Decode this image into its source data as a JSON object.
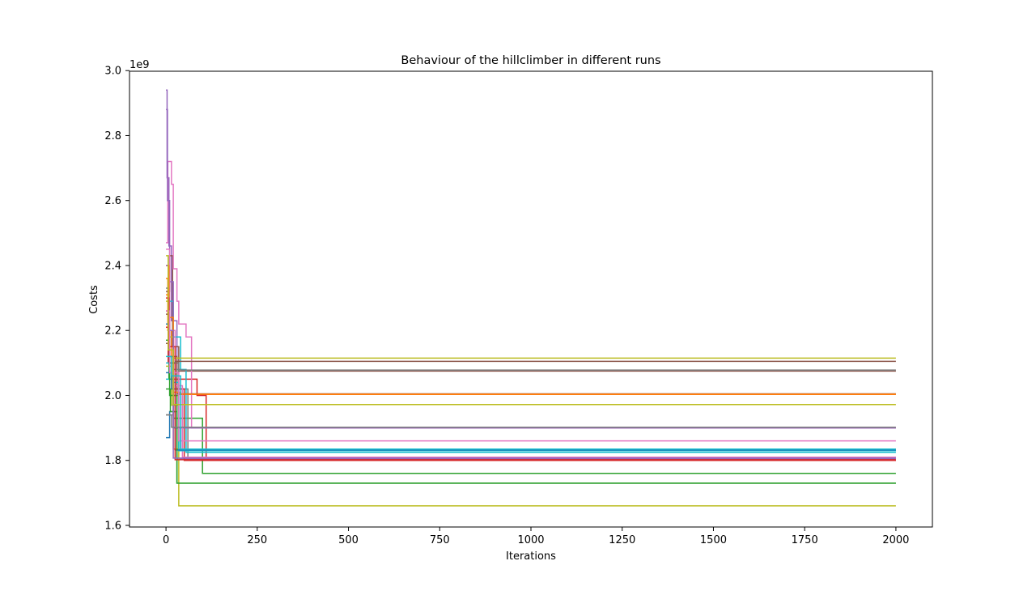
{
  "chart_data": {
    "type": "line",
    "title": "Behaviour of the hillclimber in different runs",
    "xlabel": "Iterations",
    "ylabel": "Costs",
    "y_offset_label": "1e9",
    "y_scale_factor": 1000000000,
    "xlim": [
      -100,
      2100
    ],
    "ylim": [
      1.595,
      2.998
    ],
    "xticks": [
      0,
      250,
      500,
      750,
      1000,
      1250,
      1500,
      1750,
      2000
    ],
    "xtick_labels": [
      "0",
      "250",
      "500",
      "750",
      "1000",
      "1250",
      "1500",
      "1750",
      "2000"
    ],
    "yticks": [
      1.6,
      1.8,
      2.0,
      2.2,
      2.4,
      2.6,
      2.8,
      3.0
    ],
    "ytick_labels": [
      "1.6",
      "1.8",
      "2.0",
      "2.2",
      "2.4",
      "2.6",
      "2.8",
      "3.0"
    ],
    "grid": false,
    "legend": "none",
    "series": [
      {
        "color": "#1f77b4",
        "points": [
          [
            0,
            1.87
          ],
          [
            10,
            1.87
          ],
          [
            10,
            1.95
          ],
          [
            25,
            1.95
          ],
          [
            25,
            1.9
          ],
          [
            40,
            1.9
          ],
          [
            40,
            1.83
          ],
          [
            2000,
            1.83
          ]
        ]
      },
      {
        "color": "#ff7f0e",
        "points": [
          [
            0,
            2.36
          ],
          [
            5,
            2.36
          ],
          [
            5,
            2.2
          ],
          [
            15,
            2.2
          ],
          [
            15,
            2.0
          ],
          [
            35,
            2.0
          ],
          [
            35,
            2.003
          ],
          [
            2000,
            2.003
          ]
        ]
      },
      {
        "color": "#2ca02c",
        "points": [
          [
            0,
            2.16
          ],
          [
            8,
            2.16
          ],
          [
            8,
            2.05
          ],
          [
            20,
            2.05
          ],
          [
            20,
            1.93
          ],
          [
            100,
            1.93
          ],
          [
            100,
            1.76
          ],
          [
            2000,
            1.76
          ]
        ]
      },
      {
        "color": "#d62728",
        "points": [
          [
            0,
            2.26
          ],
          [
            6,
            2.26
          ],
          [
            6,
            2.12
          ],
          [
            20,
            2.12
          ],
          [
            20,
            2.05
          ],
          [
            50,
            2.05
          ],
          [
            50,
            2.05
          ],
          [
            85,
            2.05
          ],
          [
            85,
            2.0
          ],
          [
            110,
            2.0
          ],
          [
            110,
            1.8
          ],
          [
            2000,
            1.8
          ]
        ]
      },
      {
        "color": "#9467bd",
        "points": [
          [
            0,
            2.94
          ],
          [
            3,
            2.94
          ],
          [
            3,
            2.67
          ],
          [
            8,
            2.67
          ],
          [
            8,
            2.46
          ],
          [
            15,
            2.46
          ],
          [
            15,
            2.23
          ],
          [
            30,
            2.23
          ],
          [
            30,
            1.805
          ],
          [
            2000,
            1.805
          ]
        ]
      },
      {
        "color": "#8c564b",
        "points": [
          [
            0,
            2.32
          ],
          [
            10,
            2.32
          ],
          [
            10,
            2.43
          ],
          [
            18,
            2.43
          ],
          [
            18,
            2.15
          ],
          [
            35,
            2.15
          ],
          [
            35,
            2.075
          ],
          [
            2000,
            2.075
          ]
        ]
      },
      {
        "color": "#e377c2",
        "points": [
          [
            0,
            2.47
          ],
          [
            5,
            2.47
          ],
          [
            5,
            2.72
          ],
          [
            15,
            2.72
          ],
          [
            15,
            2.65
          ],
          [
            20,
            2.65
          ],
          [
            20,
            2.39
          ],
          [
            30,
            2.39
          ],
          [
            30,
            2.29
          ],
          [
            35,
            2.29
          ],
          [
            35,
            2.22
          ],
          [
            55,
            2.22
          ],
          [
            55,
            2.18
          ],
          [
            70,
            2.18
          ],
          [
            70,
            1.9
          ],
          [
            2000,
            1.9
          ]
        ]
      },
      {
        "color": "#7f7f7f",
        "points": [
          [
            0,
            1.94
          ],
          [
            20,
            1.94
          ],
          [
            20,
            2.1
          ],
          [
            35,
            2.1
          ],
          [
            35,
            2.02
          ],
          [
            60,
            2.02
          ],
          [
            60,
            1.81
          ],
          [
            2000,
            1.81
          ]
        ]
      },
      {
        "color": "#bcbd22",
        "points": [
          [
            0,
            2.09
          ],
          [
            15,
            2.09
          ],
          [
            15,
            1.97
          ],
          [
            35,
            1.97
          ],
          [
            35,
            1.66
          ],
          [
            2000,
            1.66
          ]
        ]
      },
      {
        "color": "#17becf",
        "points": [
          [
            0,
            2.05
          ],
          [
            10,
            2.05
          ],
          [
            10,
            2.29
          ],
          [
            20,
            2.29
          ],
          [
            20,
            2.18
          ],
          [
            40,
            2.18
          ],
          [
            40,
            2.08
          ],
          [
            55,
            2.08
          ],
          [
            55,
            1.825
          ],
          [
            2000,
            1.825
          ]
        ]
      },
      {
        "color": "#1f77b4",
        "points": [
          [
            0,
            2.07
          ],
          [
            15,
            2.07
          ],
          [
            15,
            2.02
          ],
          [
            45,
            2.02
          ],
          [
            45,
            1.835
          ],
          [
            2000,
            1.835
          ]
        ]
      },
      {
        "color": "#ff7f0e",
        "points": [
          [
            0,
            2.31
          ],
          [
            8,
            2.31
          ],
          [
            8,
            2.18
          ],
          [
            20,
            2.18
          ],
          [
            20,
            1.835
          ],
          [
            2000,
            1.835
          ]
        ]
      },
      {
        "color": "#2ca02c",
        "points": [
          [
            0,
            2.02
          ],
          [
            12,
            2.02
          ],
          [
            12,
            1.95
          ],
          [
            30,
            1.95
          ],
          [
            30,
            1.73
          ],
          [
            2000,
            1.73
          ]
        ]
      },
      {
        "color": "#d62728",
        "points": [
          [
            0,
            2.21
          ],
          [
            6,
            2.21
          ],
          [
            6,
            2.1
          ],
          [
            25,
            2.1
          ],
          [
            25,
            2.02
          ],
          [
            50,
            2.02
          ],
          [
            50,
            1.8
          ],
          [
            2000,
            1.8
          ]
        ]
      },
      {
        "color": "#9467bd",
        "points": [
          [
            0,
            2.88
          ],
          [
            4,
            2.88
          ],
          [
            4,
            2.6
          ],
          [
            10,
            2.6
          ],
          [
            10,
            2.35
          ],
          [
            20,
            2.35
          ],
          [
            20,
            1.9
          ],
          [
            2000,
            1.9
          ]
        ]
      },
      {
        "color": "#8c564b",
        "points": [
          [
            0,
            2.25
          ],
          [
            10,
            2.25
          ],
          [
            10,
            2.12
          ],
          [
            30,
            2.12
          ],
          [
            30,
            2.005
          ],
          [
            2000,
            2.005
          ]
        ]
      },
      {
        "color": "#e377c2",
        "points": [
          [
            0,
            2.45
          ],
          [
            10,
            2.45
          ],
          [
            10,
            2.2
          ],
          [
            25,
            2.2
          ],
          [
            25,
            2.03
          ],
          [
            45,
            2.03
          ],
          [
            45,
            1.81
          ],
          [
            2000,
            1.81
          ]
        ]
      },
      {
        "color": "#7f7f7f",
        "points": [
          [
            0,
            2.33
          ],
          [
            8,
            2.33
          ],
          [
            8,
            2.2
          ],
          [
            20,
            2.2
          ],
          [
            20,
            2.08
          ],
          [
            40,
            2.08
          ],
          [
            40,
            2.078
          ],
          [
            2000,
            2.078
          ]
        ]
      },
      {
        "color": "#bcbd22",
        "points": [
          [
            0,
            2.29
          ],
          [
            8,
            2.29
          ],
          [
            8,
            2.18
          ],
          [
            20,
            2.18
          ],
          [
            20,
            2.115
          ],
          [
            2000,
            2.115
          ]
        ]
      },
      {
        "color": "#17becf",
        "points": [
          [
            0,
            2.1
          ],
          [
            20,
            2.1
          ],
          [
            20,
            2.04
          ],
          [
            35,
            2.04
          ],
          [
            35,
            1.83
          ],
          [
            2000,
            1.83
          ]
        ]
      },
      {
        "color": "#1f77b4",
        "points": [
          [
            0,
            2.22
          ],
          [
            10,
            2.22
          ],
          [
            10,
            2.1
          ],
          [
            25,
            2.1
          ],
          [
            25,
            1.832
          ],
          [
            2000,
            1.832
          ]
        ]
      },
      {
        "color": "#ff7f0e",
        "points": [
          [
            0,
            2.4
          ],
          [
            8,
            2.4
          ],
          [
            8,
            2.24
          ],
          [
            20,
            2.24
          ],
          [
            20,
            2.01
          ],
          [
            40,
            2.01
          ],
          [
            40,
            2.004
          ],
          [
            2000,
            2.004
          ]
        ]
      },
      {
        "color": "#2ca02c",
        "points": [
          [
            0,
            2.17
          ],
          [
            10,
            2.17
          ],
          [
            10,
            2.0
          ],
          [
            30,
            2.0
          ],
          [
            30,
            1.73
          ],
          [
            2000,
            1.73
          ]
        ]
      },
      {
        "color": "#d62728",
        "points": [
          [
            0,
            2.3
          ],
          [
            8,
            2.3
          ],
          [
            8,
            2.15
          ],
          [
            25,
            2.15
          ],
          [
            25,
            1.802
          ],
          [
            2000,
            1.802
          ]
        ]
      },
      {
        "color": "#9467bd",
        "points": [
          [
            0,
            2.4
          ],
          [
            6,
            2.4
          ],
          [
            6,
            2.2
          ],
          [
            20,
            2.2
          ],
          [
            20,
            1.807
          ],
          [
            2000,
            1.807
          ]
        ]
      },
      {
        "color": "#8c564b",
        "points": [
          [
            0,
            2.16
          ],
          [
            10,
            2.16
          ],
          [
            10,
            2.1
          ],
          [
            25,
            2.1
          ],
          [
            25,
            2.105
          ],
          [
            2000,
            2.105
          ]
        ]
      },
      {
        "color": "#e377c2",
        "points": [
          [
            0,
            2.26
          ],
          [
            10,
            2.26
          ],
          [
            10,
            2.07
          ],
          [
            35,
            2.07
          ],
          [
            35,
            1.86
          ],
          [
            2000,
            1.86
          ]
        ]
      },
      {
        "color": "#7f7f7f",
        "points": [
          [
            0,
            1.94
          ],
          [
            15,
            1.94
          ],
          [
            15,
            1.902
          ],
          [
            2000,
            1.902
          ]
        ]
      },
      {
        "color": "#bcbd22",
        "points": [
          [
            0,
            2.43
          ],
          [
            6,
            2.43
          ],
          [
            6,
            2.14
          ],
          [
            20,
            2.14
          ],
          [
            20,
            1.972
          ],
          [
            2000,
            1.972
          ]
        ]
      },
      {
        "color": "#17becf",
        "points": [
          [
            0,
            2.12
          ],
          [
            15,
            2.12
          ],
          [
            15,
            2.06
          ],
          [
            40,
            2.06
          ],
          [
            40,
            1.835
          ],
          [
            2000,
            1.835
          ]
        ]
      }
    ]
  }
}
